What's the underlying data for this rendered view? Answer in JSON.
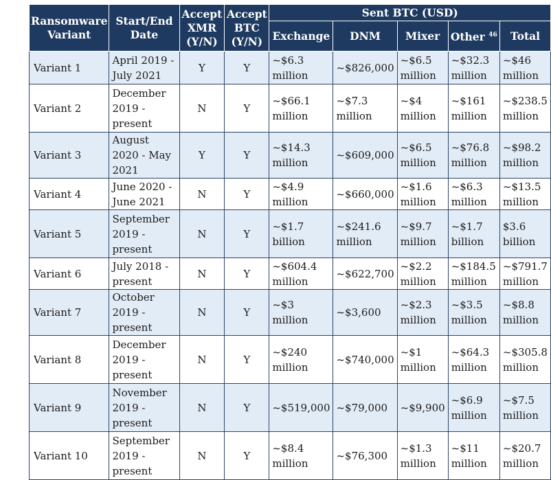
{
  "header": {
    "variant": "Ransomware Variant",
    "date": "Start/End Date",
    "xmr": "Accept XMR (Y/N)",
    "btc": "Accept BTC (Y/N)",
    "sent": "Sent BTC (USD)",
    "exchange": "Exchange",
    "dnm": "DNM",
    "mixer": "Mixer",
    "other": "Other",
    "other_note": "46",
    "total": "Total"
  },
  "rows": [
    {
      "variant": "Variant 1",
      "date": "April 2019 - July 2021",
      "xmr": "Y",
      "btc": "Y",
      "exchange": "~$6.3 million",
      "dnm": "~$826,000",
      "mixer": "~$6.5 million",
      "other": "~$32.3 million",
      "total": "~$46 million"
    },
    {
      "variant": "Variant 2",
      "date": "December 2019 - present",
      "xmr": "N",
      "btc": "Y",
      "exchange": "~$66.1 million",
      "dnm": "~$7.3 million",
      "mixer": "~$4 million",
      "other": "~$161 million",
      "total": "~$238.5 million"
    },
    {
      "variant": "Variant 3",
      "date": "August 2020 - May 2021",
      "xmr": "Y",
      "btc": "Y",
      "exchange": "~$14.3 million",
      "dnm": "~$609,000",
      "mixer": "~$6.5 million",
      "other": "~$76.8 million",
      "total": "~$98.2 million"
    },
    {
      "variant": "Variant 4",
      "date": "June 2020 - June 2021",
      "xmr": "N",
      "btc": "Y",
      "exchange": "~$4.9 million",
      "dnm": "~$660,000",
      "mixer": "~$1.6 million",
      "other": "~$6.3 million",
      "total": "~$13.5 million"
    },
    {
      "variant": "Variant 5",
      "date": "September 2019 - present",
      "xmr": "N",
      "btc": "Y",
      "exchange": "~$1.7 billion",
      "dnm": "~$241.6 million",
      "mixer": "~$9.7 million",
      "other": "~$1.7 billion",
      "total": "$3.6 billion"
    },
    {
      "variant": "Variant 6",
      "date": "July 2018 - present",
      "xmr": "N",
      "btc": "Y",
      "exchange": "~$604.4 million",
      "dnm": "~$622,700",
      "mixer": "~$2.2 million",
      "other": "~$184.5 million",
      "total": "~$791.7 million"
    },
    {
      "variant": "Variant 7",
      "date": "October 2019 - present",
      "xmr": "N",
      "btc": "Y",
      "exchange": "~$3 million",
      "dnm": "~$3,600",
      "mixer": "~$2.3 million",
      "other": "~$3.5 million",
      "total": "~$8.8 million"
    },
    {
      "variant": "Variant 8",
      "date": "December 2019 - present",
      "xmr": "N",
      "btc": "Y",
      "exchange": "~$240 million",
      "dnm": "~$740,000",
      "mixer": "~$1 million",
      "other": "~$64.3 million",
      "total": "~$305.8 million"
    },
    {
      "variant": "Variant 9",
      "date": "November 2019 - present",
      "xmr": "N",
      "btc": "Y",
      "exchange": "~$519,000",
      "dnm": "~$79,000",
      "mixer": "~$9,900",
      "other": "~$6.9 million",
      "total": "~$7.5 million"
    },
    {
      "variant": "Variant 10",
      "date": "September 2019 - present",
      "xmr": "N",
      "btc": "Y",
      "exchange": "~$8.4 million",
      "dnm": "~$76,300",
      "mixer": "~$1.3 million",
      "other": "~$11 million",
      "total": "~$20.7 million"
    }
  ]
}
